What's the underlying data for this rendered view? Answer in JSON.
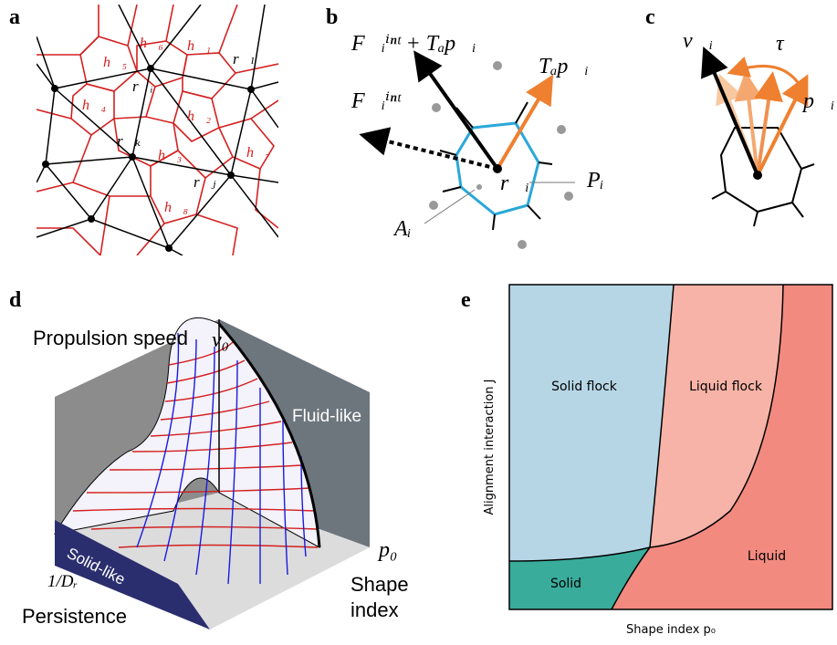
{
  "panel_a": {
    "label": "a",
    "labels": [
      "h⃗₅",
      "h⃗₆",
      "h⃗₁",
      "r⃗ₗ",
      "r⃗ᵢ",
      "h⃗₄",
      "h⃗₂",
      "r⃗ₖ",
      "h⃗₃",
      "h⃗₇",
      "r⃗ⱼ",
      "h⃗₈"
    ]
  },
  "panel_b": {
    "label": "b",
    "labels": [
      "F⃗ᵢⁱⁿᵗ + Tₐp⃗ᵢ",
      "Tₐp⃗ᵢ",
      "F⃗ᵢⁱⁿᵗ",
      "r⃗ᵢ",
      "Pᵢ",
      "Aᵢ"
    ]
  },
  "panel_c": {
    "label": "c",
    "labels": [
      "v⃗ᵢ",
      "τ",
      "p⃗ᵢ"
    ]
  },
  "panel_d": {
    "label": "d",
    "labels": [
      "Propulsion speed",
      "v₀",
      "Fluid-like",
      "Solid-like",
      "p₀",
      "1/Dᵣ",
      "Persistence",
      "Shape",
      "index"
    ]
  },
  "panel_e": {
    "label": "e",
    "labels": [
      "Solid flock",
      "Liquid flock",
      "Solid",
      "Liquid",
      "Alignment interaction J",
      "Shape index p₀"
    ]
  }
}
